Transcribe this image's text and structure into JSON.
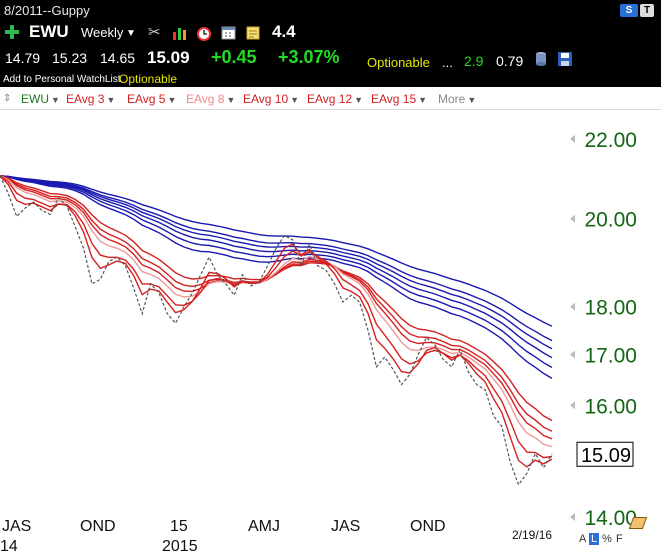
{
  "window": {
    "title": "8/2011--Guppy"
  },
  "header": {
    "symbol": "EWU",
    "period": "Weekly",
    "rating": "4.4",
    "open": "14.79",
    "high": "15.23",
    "low": "14.65",
    "last": "15.09",
    "change": "+0.45",
    "change_pct": "+3.07%",
    "optionable": "Optionable",
    "ellipsis": "...",
    "val1": "2.9",
    "val2": "0.79",
    "watchlist_link": "Add to Personal WatchList",
    "optionable2": "Optionable",
    "badge_s": "S",
    "badge_t": "T"
  },
  "indicators": [
    {
      "label": "EWU",
      "color": "#1a7a1a"
    },
    {
      "label": "EAvg 3",
      "color": "#d22020"
    },
    {
      "label": "EAvg 5",
      "color": "#d22020"
    },
    {
      "label": "EAvg 8",
      "color": "#ea8a8a"
    },
    {
      "label": "EAvg 10",
      "color": "#d22020"
    },
    {
      "label": "EAvg 12",
      "color": "#d22020"
    },
    {
      "label": "EAvg 15",
      "color": "#d22020"
    },
    {
      "label": "More",
      "color": "#888888"
    }
  ],
  "chart_data": {
    "type": "line",
    "ylim": [
      13.8,
      22.8
    ],
    "yscale": "log",
    "yticks": [
      "22.00",
      "20.00",
      "18.00",
      "17.00",
      "16.00",
      "14.00"
    ],
    "last_price_label": "15.09",
    "xticks": [
      {
        "label": "JAS",
        "sub": "14"
      },
      {
        "label": "OND",
        "sub": ""
      },
      {
        "label": "15",
        "sub": "2015"
      },
      {
        "label": "AMJ",
        "sub": ""
      },
      {
        "label": "JAS",
        "sub": ""
      },
      {
        "label": "OND",
        "sub": ""
      }
    ],
    "end_date": "2/19/16",
    "price": [
      21.05,
      20.6,
      20.05,
      20.25,
      20.4,
      20.2,
      20.1,
      20.5,
      20.3,
      19.8,
      19.3,
      18.5,
      18.6,
      19.0,
      19.1,
      18.9,
      18.4,
      17.85,
      18.5,
      18.3,
      17.85,
      17.65,
      18.0,
      18.3,
      18.7,
      19.1,
      18.7,
      18.5,
      18.25,
      18.7,
      18.45,
      18.55,
      18.9,
      19.3,
      19.6,
      19.5,
      18.9,
      19.4,
      18.9,
      18.8,
      18.5,
      18.1,
      18.25,
      18.1,
      17.5,
      16.75,
      16.95,
      16.7,
      16.4,
      16.6,
      17.0,
      17.35,
      17.2,
      16.9,
      16.75,
      17.1,
      16.65,
      16.4,
      16.3,
      15.8,
      15.6,
      14.95,
      14.55,
      14.75,
      15.1,
      14.85,
      15.09
    ],
    "series": [
      {
        "name": "EAvg 3",
        "color": "#d62020",
        "period": 3
      },
      {
        "name": "EAvg 5",
        "color": "#d62020",
        "period": 5
      },
      {
        "name": "EAvg 8",
        "color": "#ef9a9a",
        "period": 8
      },
      {
        "name": "EAvg 10",
        "color": "#d62020",
        "period": 10
      },
      {
        "name": "EAvg 12",
        "color": "#d62020",
        "period": 12
      },
      {
        "name": "EAvg 15",
        "color": "#d62020",
        "period": 15
      },
      {
        "name": "EAvg 30",
        "color": "#1a1ab0",
        "period": 30
      },
      {
        "name": "EAvg 35",
        "color": "#1a1ab0",
        "period": 35
      },
      {
        "name": "EAvg 40",
        "color": "#1a1ab0",
        "period": 40
      },
      {
        "name": "EAvg 45",
        "color": "#1a1ab0",
        "period": 45
      },
      {
        "name": "EAvg 50",
        "color": "#1a1ab0",
        "period": 50
      },
      {
        "name": "EAvg 60",
        "color": "#1a1ab0",
        "period": 60
      }
    ],
    "colors": {
      "price": "#555555",
      "axis_label": "#126612"
    }
  },
  "footer": {
    "scale_a": "A",
    "scale_l": "L",
    "scale_pct": "%",
    "scale_f": "F"
  }
}
